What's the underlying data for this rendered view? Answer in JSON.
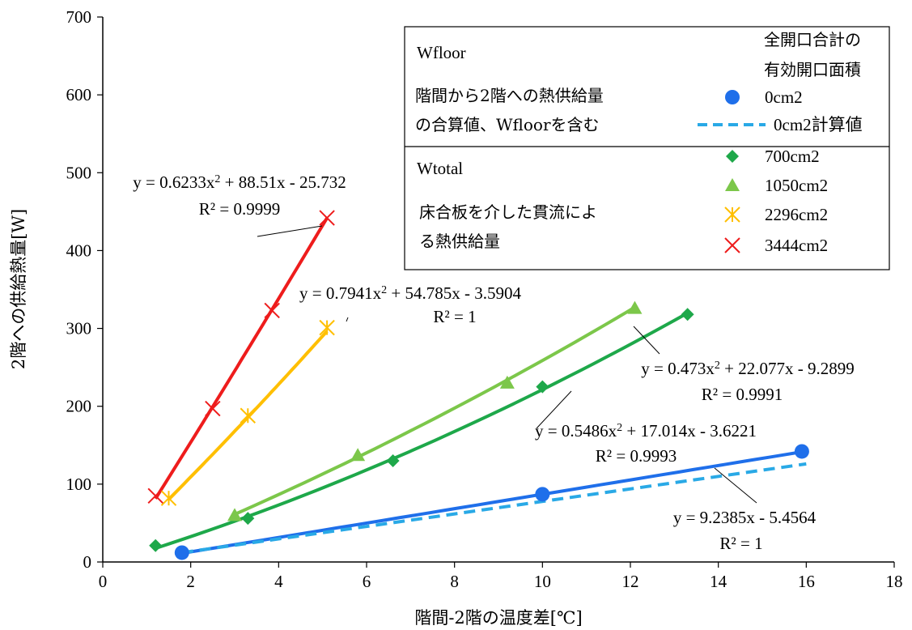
{
  "chart_data": {
    "type": "scatter",
    "xlabel": "階間-2階の温度差[℃]",
    "ylabel": "2階への供給熱量[W]",
    "xlim": [
      0,
      18
    ],
    "ylim": [
      0,
      700
    ],
    "xticks": [
      0,
      2,
      4,
      6,
      8,
      10,
      12,
      14,
      16,
      18
    ],
    "yticks": [
      0,
      100,
      200,
      300,
      400,
      500,
      600,
      700
    ],
    "grid": false,
    "legend_placement": "top-right",
    "legend_title": [
      "全開口合計の",
      "有効開口面積"
    ],
    "legend_notes": {
      "wfloor_title": "Wfloor",
      "wfloor_desc": [
        "階間から2階への熱供給量",
        "の合算値、Wfloorを含む"
      ],
      "wtotal_title": "Wtotal",
      "wtotal_desc": [
        "床合板を介した貫流によ",
        "る熱供給量"
      ]
    },
    "series": [
      {
        "name": "0cm2",
        "marker": "circle",
        "color": "#1f6fea",
        "points": [
          [
            1.8,
            12
          ],
          [
            10.0,
            87
          ],
          [
            15.9,
            142
          ]
        ],
        "trend": {
          "kind": "linear",
          "a": 0,
          "b": 9.2385,
          "c": -5.4564,
          "x_range": [
            1.8,
            15.9
          ]
        }
      },
      {
        "name": "0cm2計算値",
        "marker": "none",
        "color": "#29a9e6",
        "dashed": true,
        "line": [
          [
            1.8,
            12
          ],
          [
            16.0,
            126
          ]
        ]
      },
      {
        "name": "700cm2",
        "marker": "diamond",
        "color": "#1ea84a",
        "points": [
          [
            1.2,
            21
          ],
          [
            3.3,
            56
          ],
          [
            6.6,
            130
          ],
          [
            10.0,
            225
          ],
          [
            13.3,
            318
          ]
        ],
        "trend": {
          "kind": "poly2",
          "a": 0.5486,
          "b": 17.014,
          "c": -3.6221,
          "x_range": [
            1.2,
            13.3
          ]
        }
      },
      {
        "name": "1050cm2",
        "marker": "triangle",
        "color": "#7cc74a",
        "points": [
          [
            3.0,
            60
          ],
          [
            5.8,
            137
          ],
          [
            9.2,
            230
          ],
          [
            12.1,
            326
          ]
        ],
        "trend": {
          "kind": "poly2",
          "a": 0.473,
          "b": 22.077,
          "c": -9.2899,
          "x_range": [
            3.0,
            12.1
          ]
        }
      },
      {
        "name": "2296cm2",
        "marker": "asterisk",
        "color": "#ffbf00",
        "points": [
          [
            1.5,
            82
          ],
          [
            3.3,
            188
          ],
          [
            5.1,
            301
          ]
        ],
        "trend": {
          "kind": "poly2",
          "a": 0.7941,
          "b": 54.785,
          "c": -3.5904,
          "x_range": [
            1.5,
            5.1
          ]
        }
      },
      {
        "name": "3444cm2",
        "marker": "x",
        "color": "#ee1c1c",
        "points": [
          [
            1.2,
            85
          ],
          [
            2.5,
            197
          ],
          [
            3.85,
            323
          ],
          [
            5.1,
            442
          ]
        ],
        "trend": {
          "kind": "poly2",
          "a": 0.6233,
          "b": 88.51,
          "c": -25.732,
          "x_range": [
            1.2,
            5.1
          ]
        }
      }
    ],
    "annotations": [
      {
        "eq_pre": "y = 0.6233x",
        "eq_sup": "2",
        "eq_post": " + 88.51x - 25.732",
        "r2": "R² = 0.9999",
        "series": "3444cm2",
        "at": [
          3.2,
          360
        ]
      },
      {
        "eq_pre": "y = 0.7941x",
        "eq_sup": "2",
        "eq_post": " + 54.785x - 3.5904",
        "r2": "R² = 1",
        "series": "2296cm2",
        "at": [
          5.1,
          301
        ]
      },
      {
        "eq_pre": "y = 0.473x",
        "eq_sup": "2",
        "eq_post": " + 22.077x - 9.2899",
        "r2": "R² = 0.9991",
        "series": "1050cm2",
        "at": [
          12.3,
          295
        ]
      },
      {
        "eq_pre": "y = 0.5486x",
        "eq_sup": "2",
        "eq_post": " + 17.014x - 3.6221",
        "r2": "R² = 0.9993",
        "series": "700cm2",
        "at": [
          10.9,
          205
        ]
      },
      {
        "eq_pre": "y = 9.2385x - 5.4564",
        "eq_sup": "",
        "eq_post": "",
        "r2": "R² = 1",
        "series": "0cm2",
        "at": [
          14.5,
          130
        ]
      }
    ]
  }
}
